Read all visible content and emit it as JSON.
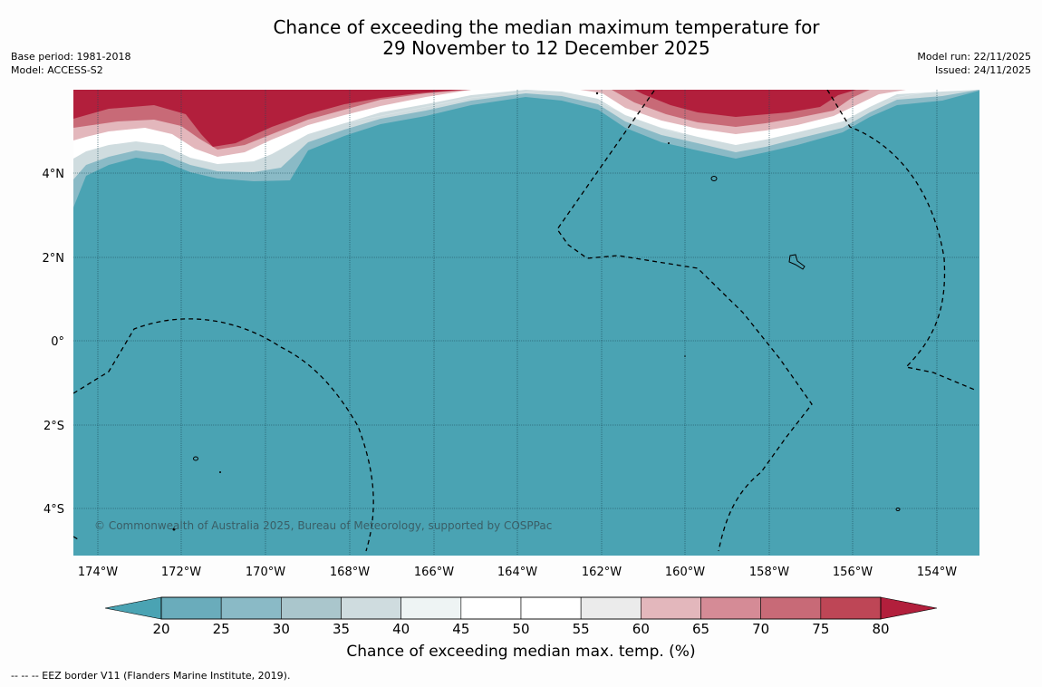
{
  "title": {
    "line1": "Chance of exceeding the median maximum temperature for",
    "line2": "29 November to 12 December 2025"
  },
  "meta_left": {
    "base_period": "Base period: 1981-2018",
    "model": "Model: ACCESS-S2"
  },
  "meta_right": {
    "model_run": "Model run: 22/11/2025",
    "issued": "Issued: 24/11/2025"
  },
  "map": {
    "lat_labels": [
      "4°N",
      "2°N",
      "0°",
      "2°S",
      "4°S"
    ],
    "lon_labels": [
      "174°W",
      "172°W",
      "170°W",
      "168°W",
      "166°W",
      "164°W",
      "162°W",
      "160°W",
      "158°W",
      "156°W",
      "154°W"
    ],
    "copyright": "© Commonwealth of Australia 2025, Bureau of Meteorology, supported by COSPPac"
  },
  "colorbar": {
    "tick_labels": [
      "20",
      "25",
      "30",
      "35",
      "40",
      "45",
      "50",
      "55",
      "60",
      "65",
      "70",
      "75",
      "80"
    ],
    "colors": [
      "#4aa3b3",
      "#6aacbb",
      "#8abac6",
      "#aac6cc",
      "#cfdcdf",
      "#eef4f4",
      "#ffffff",
      "#ffffff",
      "#ebebeb",
      "#e3b7bc",
      "#d58b96",
      "#c86a77",
      "#be4656",
      "#b21f3c"
    ],
    "label": "Chance of exceeding median max. temp. (%)"
  },
  "footer": "--  --  -- EEZ border V11 (Flanders Marine Institute, 2019)."
}
